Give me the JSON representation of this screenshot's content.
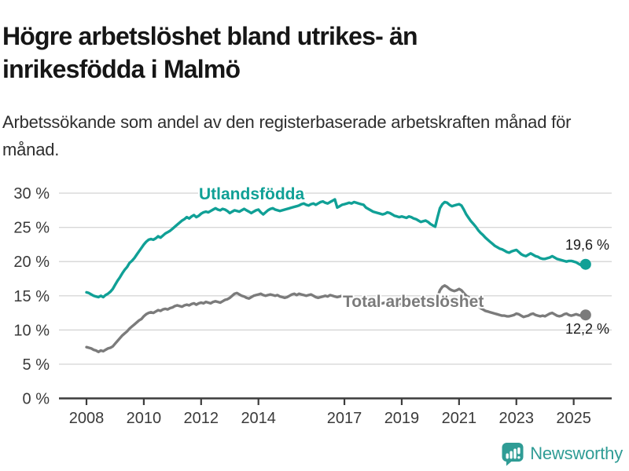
{
  "header": {
    "title": "Högre arbetslöshet bland utrikes- än inrikesfödda i Malmö",
    "subtitle": "Arbetssökande som andel av den registerbaserade arbetskraften månad för månad."
  },
  "chart_data": {
    "type": "line",
    "unit": "%",
    "x_start": {
      "year": 2008,
      "month": 1
    },
    "x_end": {
      "year": 2025,
      "month": 6
    },
    "x_tick_years": [
      2008,
      2010,
      2012,
      2014,
      2017,
      2019,
      2021,
      2023,
      2025
    ],
    "y_ticks": [
      0,
      5,
      10,
      15,
      20,
      25,
      30
    ],
    "y_tick_suffix": " %",
    "ylim": [
      0,
      31
    ],
    "grid": "horizontal",
    "colors": {
      "grid": "#d8d8d8",
      "axis": "#3c3c3c",
      "tick_text": "#3a3a3a",
      "end_label_text": "#1a1a1a"
    },
    "series": [
      {
        "name": "Utlandsfödda",
        "color": "#10a096",
        "end_label": "19,6 %",
        "end_value": 19.6,
        "values": [
          15.5,
          15.4,
          15.2,
          15.0,
          14.9,
          14.8,
          15.0,
          14.8,
          15.1,
          15.3,
          15.6,
          16.0,
          16.6,
          17.2,
          17.7,
          18.3,
          18.8,
          19.2,
          19.8,
          20.1,
          20.5,
          21.0,
          21.5,
          22.0,
          22.5,
          22.9,
          23.2,
          23.3,
          23.2,
          23.4,
          23.7,
          23.5,
          23.8,
          24.1,
          24.3,
          24.5,
          24.8,
          25.1,
          25.4,
          25.7,
          26.0,
          26.2,
          26.5,
          26.3,
          26.6,
          26.8,
          26.5,
          26.7,
          27.0,
          27.2,
          27.3,
          27.2,
          27.4,
          27.6,
          27.8,
          27.6,
          27.5,
          27.7,
          27.6,
          27.4,
          27.1,
          27.3,
          27.5,
          27.4,
          27.3,
          27.5,
          27.7,
          27.5,
          27.3,
          27.1,
          27.3,
          27.5,
          27.6,
          27.2,
          26.9,
          27.2,
          27.5,
          27.7,
          27.8,
          27.6,
          27.5,
          27.4,
          27.5,
          27.6,
          27.7,
          27.8,
          27.9,
          28.0,
          28.1,
          28.2,
          28.4,
          28.5,
          28.3,
          28.2,
          28.4,
          28.5,
          28.3,
          28.5,
          28.7,
          28.8,
          28.6,
          28.5,
          28.7,
          28.9,
          29.1,
          27.9,
          28.1,
          28.3,
          28.4,
          28.5,
          28.6,
          28.5,
          28.7,
          28.6,
          28.5,
          28.4,
          28.3,
          27.9,
          27.7,
          27.5,
          27.3,
          27.2,
          27.1,
          27.0,
          26.9,
          27.0,
          27.2,
          27.1,
          26.9,
          26.7,
          26.6,
          26.5,
          26.6,
          26.5,
          26.4,
          26.6,
          26.5,
          26.3,
          26.2,
          26.0,
          25.8,
          25.9,
          26.0,
          25.8,
          25.5,
          25.3,
          25.1,
          26.5,
          27.8,
          28.4,
          28.7,
          28.6,
          28.3,
          28.1,
          28.2,
          28.3,
          28.4,
          28.2,
          27.6,
          26.9,
          26.4,
          25.9,
          25.5,
          25.1,
          24.6,
          24.2,
          23.9,
          23.5,
          23.2,
          22.9,
          22.6,
          22.3,
          22.1,
          21.9,
          21.8,
          21.6,
          21.4,
          21.3,
          21.5,
          21.6,
          21.7,
          21.4,
          21.1,
          20.9,
          20.8,
          21.0,
          21.2,
          21.0,
          20.8,
          20.7,
          20.5,
          20.4,
          20.4,
          20.5,
          20.6,
          20.8,
          20.6,
          20.4,
          20.3,
          20.2,
          20.1,
          20.0,
          20.1,
          20.1,
          20.0,
          19.9,
          19.7,
          19.5,
          19.4,
          19.6
        ]
      },
      {
        "name": "Total arbetslöshet",
        "color": "#7b7b7b",
        "end_label": "12,2 %",
        "end_value": 12.2,
        "values": [
          7.5,
          7.4,
          7.3,
          7.1,
          7.0,
          6.8,
          7.0,
          6.9,
          7.1,
          7.3,
          7.4,
          7.6,
          8.0,
          8.4,
          8.8,
          9.2,
          9.5,
          9.8,
          10.2,
          10.5,
          10.8,
          11.1,
          11.4,
          11.6,
          12.0,
          12.3,
          12.5,
          12.6,
          12.5,
          12.7,
          12.9,
          12.8,
          13.0,
          13.1,
          13.0,
          13.2,
          13.3,
          13.5,
          13.6,
          13.5,
          13.4,
          13.6,
          13.7,
          13.6,
          13.8,
          13.9,
          13.7,
          13.9,
          14.0,
          13.9,
          14.1,
          14.0,
          13.9,
          14.1,
          14.2,
          14.1,
          14.0,
          14.2,
          14.4,
          14.5,
          14.7,
          15.0,
          15.3,
          15.4,
          15.2,
          15.0,
          14.9,
          14.7,
          14.6,
          14.8,
          15.0,
          15.1,
          15.2,
          15.3,
          15.1,
          15.0,
          15.1,
          15.2,
          15.1,
          15.0,
          15.1,
          14.9,
          14.8,
          14.7,
          14.8,
          15.0,
          15.2,
          15.3,
          15.1,
          15.3,
          15.2,
          15.1,
          15.0,
          15.1,
          15.2,
          15.0,
          14.8,
          14.7,
          14.8,
          14.9,
          15.0,
          14.9,
          15.1,
          15.0,
          14.9,
          14.8,
          14.9,
          15.0,
          14.9,
          14.8,
          14.7,
          14.8,
          14.7,
          14.6,
          14.7,
          14.6,
          14.5,
          14.4,
          14.3,
          14.2,
          14.1,
          14.0,
          14.0,
          13.9,
          13.9,
          14.0,
          14.1,
          14.0,
          13.9,
          13.8,
          13.7,
          13.8,
          13.8,
          13.7,
          13.7,
          13.8,
          13.7,
          13.6,
          13.7,
          13.6,
          13.5,
          13.6,
          13.7,
          13.6,
          13.5,
          13.4,
          13.6,
          14.8,
          15.8,
          16.3,
          16.5,
          16.3,
          16.0,
          15.8,
          15.7,
          15.8,
          16.0,
          15.8,
          15.4,
          15.0,
          14.8,
          14.4,
          14.1,
          13.8,
          13.5,
          13.2,
          13.0,
          12.8,
          12.7,
          12.6,
          12.5,
          12.4,
          12.3,
          12.2,
          12.1,
          12.1,
          12.0,
          12.0,
          12.1,
          12.2,
          12.4,
          12.3,
          12.1,
          11.9,
          12.0,
          12.1,
          12.3,
          12.4,
          12.2,
          12.1,
          12.0,
          12.1,
          12.0,
          12.2,
          12.4,
          12.5,
          12.3,
          12.1,
          12.0,
          12.1,
          12.3,
          12.4,
          12.2,
          12.1,
          12.2,
          12.3,
          12.2,
          12.1,
          12.0,
          12.2
        ]
      }
    ]
  },
  "footer": {
    "brand": "Newsworthy",
    "brand_color": "#2f9c95"
  }
}
